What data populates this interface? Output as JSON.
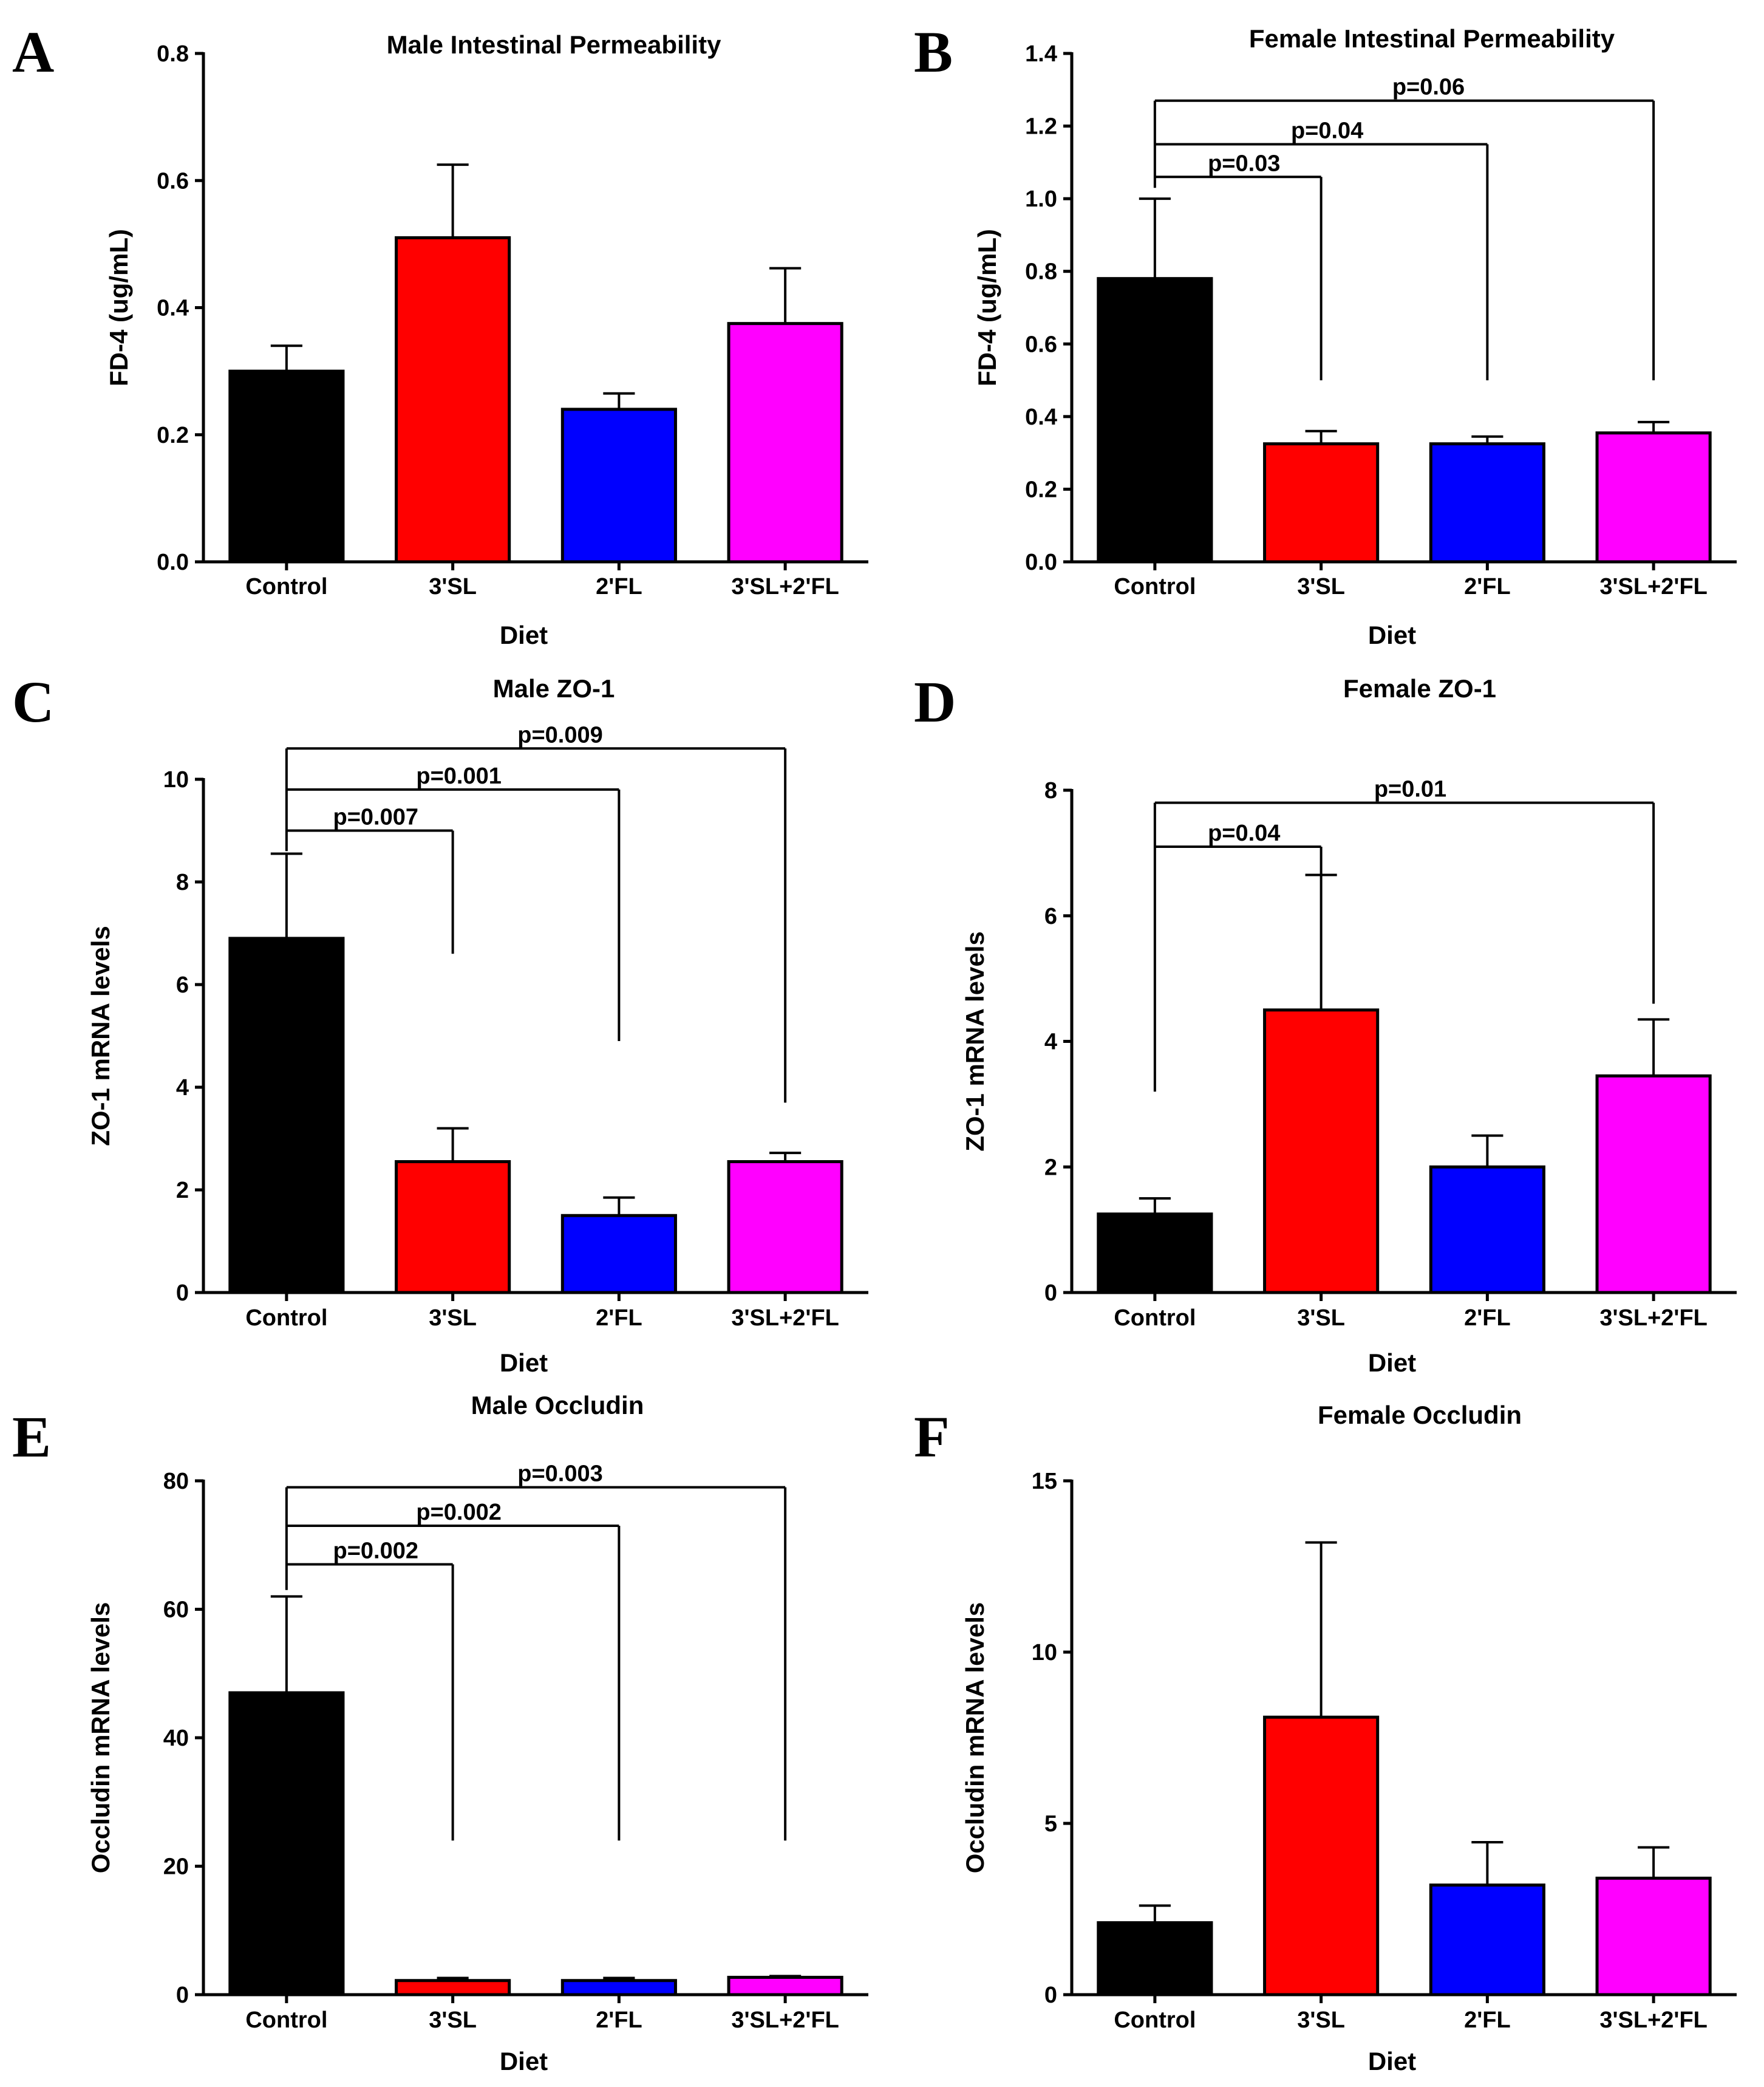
{
  "figure": {
    "colors": {
      "Control": "#000000",
      "3'SL": "#ff0000",
      "2'FL": "#0000ff",
      "3'SL+2'FL": "#ff00ff"
    }
  },
  "chart_data": [
    {
      "id": "A",
      "type": "bar",
      "letter": "A",
      "title": "Male Intestinal Permeability",
      "xlabel": "Diet",
      "ylabel": "FD-4 (ug/mL)",
      "categories": [
        "Control",
        "3'SL",
        "2'FL",
        "3'SL+2'FL"
      ],
      "values": [
        0.3,
        0.51,
        0.24,
        0.375
      ],
      "errors": [
        0.04,
        0.115,
        0.025,
        0.087
      ],
      "ylim": [
        0,
        0.8
      ],
      "yticks": [
        0.0,
        0.2,
        0.4,
        0.6,
        0.8
      ],
      "ytick_labels": [
        "0.0",
        "0.2",
        "0.4",
        "0.6",
        "0.8"
      ],
      "comparisons": []
    },
    {
      "id": "B",
      "type": "bar",
      "letter": "B",
      "title": "Female Intestinal Permeability",
      "xlabel": "Diet",
      "ylabel": "FD-4 (ug/mL)",
      "categories": [
        "Control",
        "3'SL",
        "2'FL",
        "3'SL+2'FL"
      ],
      "values": [
        0.78,
        0.325,
        0.325,
        0.355
      ],
      "errors": [
        0.22,
        0.035,
        0.02,
        0.03
      ],
      "ylim": [
        0,
        1.4
      ],
      "yticks": [
        0.0,
        0.2,
        0.4,
        0.6,
        0.8,
        1.0,
        1.2,
        1.4
      ],
      "ytick_labels": [
        "0.0",
        "0.2",
        "0.4",
        "0.6",
        "0.8",
        "1.0",
        "1.2",
        "1.4"
      ],
      "comparisons": [
        {
          "to": 1,
          "label": "p=0.03",
          "y": 1.06,
          "end": 0.5
        },
        {
          "to": 2,
          "label": "p=0.04",
          "y": 1.15,
          "end": 0.5
        },
        {
          "to": 3,
          "label": "p=0.06",
          "y": 1.27,
          "end": 0.5
        }
      ],
      "stem_start": 1.03
    },
    {
      "id": "C",
      "type": "bar",
      "letter": "C",
      "title": "Male ZO-1",
      "xlabel": "Diet",
      "ylabel": "ZO-1 mRNA levels",
      "categories": [
        "Control",
        "3'SL",
        "2'FL",
        "3'SL+2'FL"
      ],
      "values": [
        6.9,
        2.55,
        1.5,
        2.55
      ],
      "errors": [
        1.65,
        0.65,
        0.35,
        0.17
      ],
      "ylim": [
        0,
        10
      ],
      "yticks": [
        0,
        2,
        4,
        6,
        8,
        10
      ],
      "ytick_labels": [
        "0",
        "2",
        "4",
        "6",
        "8",
        "10"
      ],
      "comparisons": [
        {
          "to": 1,
          "label": "p=0.007",
          "y": 9.0,
          "end": 6.6
        },
        {
          "to": 2,
          "label": "p=0.001",
          "y": 9.8,
          "end": 4.9
        },
        {
          "to": 3,
          "label": "p=0.009",
          "y": 10.6,
          "end": 3.7
        }
      ],
      "stem_start": 8.6
    },
    {
      "id": "D",
      "type": "bar",
      "letter": "D",
      "title": "Female ZO-1",
      "xlabel": "Diet",
      "ylabel": "ZO-1 mRNA levels",
      "categories": [
        "Control",
        "3'SL",
        "2'FL",
        "3'SL+2'FL"
      ],
      "values": [
        1.25,
        4.5,
        2.0,
        3.45
      ],
      "errors": [
        0.25,
        2.15,
        0.5,
        0.9
      ],
      "ylim": [
        0,
        8
      ],
      "yticks": [
        0,
        2,
        4,
        6,
        8
      ],
      "ytick_labels": [
        "0",
        "2",
        "4",
        "6",
        "8"
      ],
      "comparisons": [
        {
          "to": 1,
          "label": "p=0.04",
          "y": 7.1,
          "end": 6.65
        },
        {
          "to": 3,
          "label": "p=0.01",
          "y": 7.8,
          "end": 4.6
        }
      ],
      "stem_start": 3.2
    },
    {
      "id": "E",
      "type": "bar",
      "letter": "E",
      "title": "Male Occludin",
      "xlabel": "Diet",
      "ylabel": "Occludin mRNA levels",
      "categories": [
        "Control",
        "3'SL",
        "2'FL",
        "3'SL+2'FL"
      ],
      "values": [
        47,
        2.2,
        2.2,
        2.7
      ],
      "errors": [
        15,
        0.4,
        0.4,
        0.2
      ],
      "ylim": [
        0,
        80
      ],
      "yticks": [
        0,
        20,
        40,
        60,
        80
      ],
      "ytick_labels": [
        "0",
        "20",
        "40",
        "60",
        "80"
      ],
      "comparisons": [
        {
          "to": 1,
          "label": "p=0.002",
          "y": 67,
          "end": 24
        },
        {
          "to": 2,
          "label": "p=0.002",
          "y": 73,
          "end": 24
        },
        {
          "to": 3,
          "label": "p=0.003",
          "y": 79,
          "end": 24
        }
      ],
      "stem_start": 63
    },
    {
      "id": "F",
      "type": "bar",
      "letter": "F",
      "title": "Female Occludin",
      "xlabel": "Diet",
      "ylabel": "Occludin mRNA levels",
      "categories": [
        "Control",
        "3'SL",
        "2'FL",
        "3'SL+2'FL"
      ],
      "values": [
        2.1,
        8.1,
        3.2,
        3.4
      ],
      "errors": [
        0.5,
        5.1,
        1.25,
        0.9
      ],
      "ylim": [
        0,
        15
      ],
      "yticks": [
        0,
        5,
        10,
        15
      ],
      "ytick_labels": [
        "0",
        "5",
        "10",
        "15"
      ],
      "comparisons": []
    }
  ]
}
